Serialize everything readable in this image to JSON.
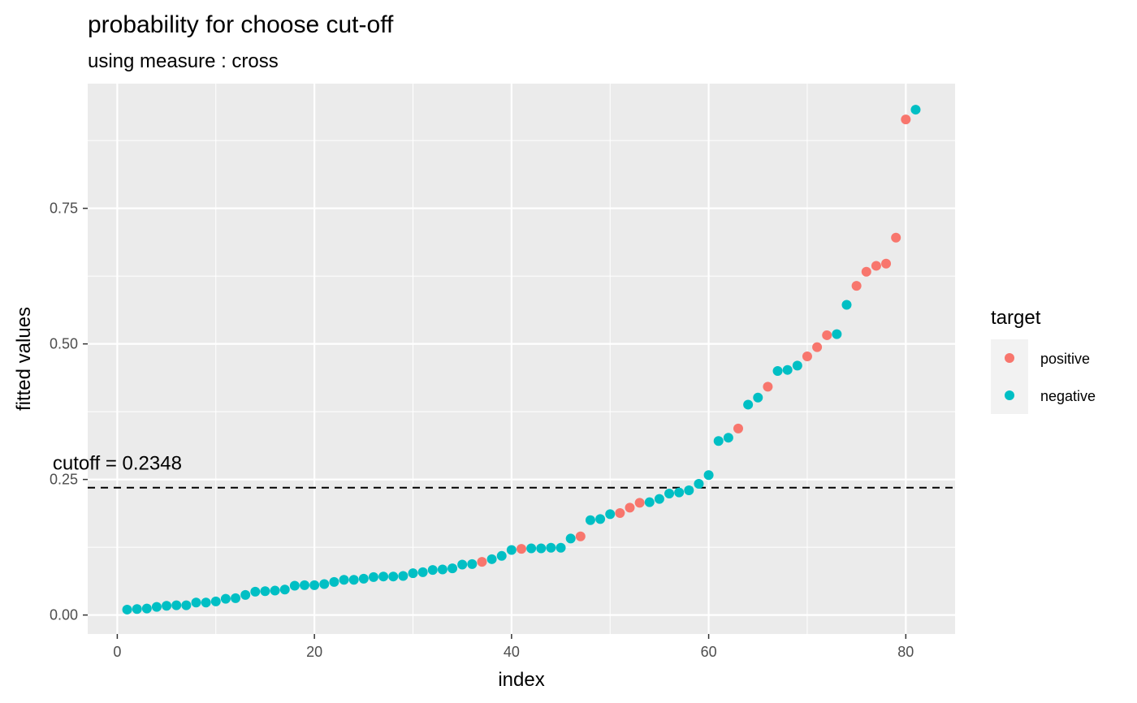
{
  "chart_data": {
    "type": "scatter",
    "title": "probability for choose cut-off",
    "subtitle": "using measure : cross",
    "xlabel": "index",
    "ylabel": "fitted values",
    "xlim": [
      -3,
      85
    ],
    "ylim": [
      -0.035,
      0.98
    ],
    "x_ticks": [
      0,
      20,
      40,
      60,
      80
    ],
    "x_tick_labels": [
      "0",
      "20",
      "40",
      "60",
      "80"
    ],
    "y_ticks": [
      0,
      0.25,
      0.5,
      0.75
    ],
    "y_tick_labels": [
      "0.00",
      "0.25",
      "0.50",
      "0.75"
    ],
    "grid": true,
    "legend": {
      "title": "target",
      "placement": "right",
      "entries": [
        {
          "label": "positive",
          "color": "#F8766D"
        },
        {
          "label": "negative",
          "color": "#00BFC4"
        }
      ]
    },
    "reference_line": {
      "orientation": "horizontal",
      "y": 0.2348,
      "style": "dashed",
      "color": "#000000"
    },
    "annotation": {
      "text": "cutoff = 0.2348",
      "x": 0,
      "y": 0.28
    },
    "series": [
      {
        "name": "positive",
        "color": "#F8766D",
        "points": [
          [
            37,
            0.098
          ],
          [
            41,
            0.122
          ],
          [
            47,
            0.145
          ],
          [
            51,
            0.188
          ],
          [
            52,
            0.198
          ],
          [
            53,
            0.207
          ],
          [
            63,
            0.344
          ],
          [
            66,
            0.421
          ],
          [
            70,
            0.477
          ],
          [
            71,
            0.494
          ],
          [
            72,
            0.516
          ],
          [
            75,
            0.607
          ],
          [
            76,
            0.633
          ],
          [
            77,
            0.644
          ],
          [
            78,
            0.648
          ],
          [
            79,
            0.696
          ],
          [
            80,
            0.914
          ]
        ]
      },
      {
        "name": "negative",
        "color": "#00BFC4",
        "points": [
          [
            1,
            0.01
          ],
          [
            2,
            0.011
          ],
          [
            3,
            0.012
          ],
          [
            4,
            0.015
          ],
          [
            5,
            0.017
          ],
          [
            6,
            0.018
          ],
          [
            7,
            0.018
          ],
          [
            8,
            0.023
          ],
          [
            9,
            0.023
          ],
          [
            10,
            0.025
          ],
          [
            11,
            0.03
          ],
          [
            12,
            0.031
          ],
          [
            13,
            0.037
          ],
          [
            14,
            0.043
          ],
          [
            15,
            0.044
          ],
          [
            16,
            0.045
          ],
          [
            17,
            0.047
          ],
          [
            18,
            0.054
          ],
          [
            19,
            0.055
          ],
          [
            20,
            0.055
          ],
          [
            21,
            0.057
          ],
          [
            22,
            0.061
          ],
          [
            23,
            0.065
          ],
          [
            24,
            0.065
          ],
          [
            25,
            0.067
          ],
          [
            26,
            0.07
          ],
          [
            27,
            0.071
          ],
          [
            28,
            0.071
          ],
          [
            29,
            0.072
          ],
          [
            30,
            0.077
          ],
          [
            31,
            0.079
          ],
          [
            32,
            0.083
          ],
          [
            33,
            0.084
          ],
          [
            34,
            0.086
          ],
          [
            35,
            0.093
          ],
          [
            36,
            0.094
          ],
          [
            38,
            0.103
          ],
          [
            39,
            0.109
          ],
          [
            40,
            0.12
          ],
          [
            42,
            0.123
          ],
          [
            43,
            0.123
          ],
          [
            44,
            0.124
          ],
          [
            45,
            0.124
          ],
          [
            46,
            0.141
          ],
          [
            48,
            0.175
          ],
          [
            49,
            0.177
          ],
          [
            50,
            0.186
          ],
          [
            54,
            0.208
          ],
          [
            55,
            0.214
          ],
          [
            56,
            0.224
          ],
          [
            57,
            0.226
          ],
          [
            58,
            0.23
          ],
          [
            59,
            0.242
          ],
          [
            60,
            0.258
          ],
          [
            61,
            0.321
          ],
          [
            62,
            0.327
          ],
          [
            64,
            0.388
          ],
          [
            65,
            0.401
          ],
          [
            67,
            0.45
          ],
          [
            68,
            0.452
          ],
          [
            69,
            0.46
          ],
          [
            73,
            0.518
          ],
          [
            74,
            0.572
          ],
          [
            81,
            0.932
          ]
        ]
      }
    ]
  }
}
